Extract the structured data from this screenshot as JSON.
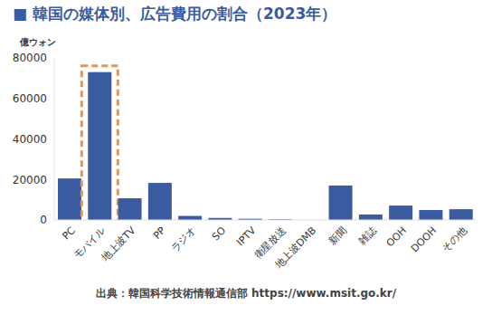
{
  "chart_data": {
    "type": "bar",
    "title": "■ 韓国の媒体別、広告費用の割合（2023年）",
    "y_label": "億ウォン",
    "source": "出典：韓国科学技術情報通信部 https://www.msit.go.kr/",
    "categories": [
      "PC",
      "モバイル",
      "地上波TV",
      "PP",
      "ラジオ",
      "SO",
      "IPTV",
      "衛星放送",
      "地上波DMB",
      "新聞",
      "雑誌",
      "OOH",
      "DOOH",
      "その他"
    ],
    "values": [
      20500,
      73000,
      10700,
      18300,
      2000,
      1000,
      600,
      300,
      20,
      17000,
      2700,
      7100,
      4900,
      5300
    ],
    "color": "#3a5ba0",
    "ylim": [
      0,
      80000
    ],
    "yticks": [
      0,
      20000,
      40000,
      60000,
      80000
    ],
    "grid": false
  }
}
